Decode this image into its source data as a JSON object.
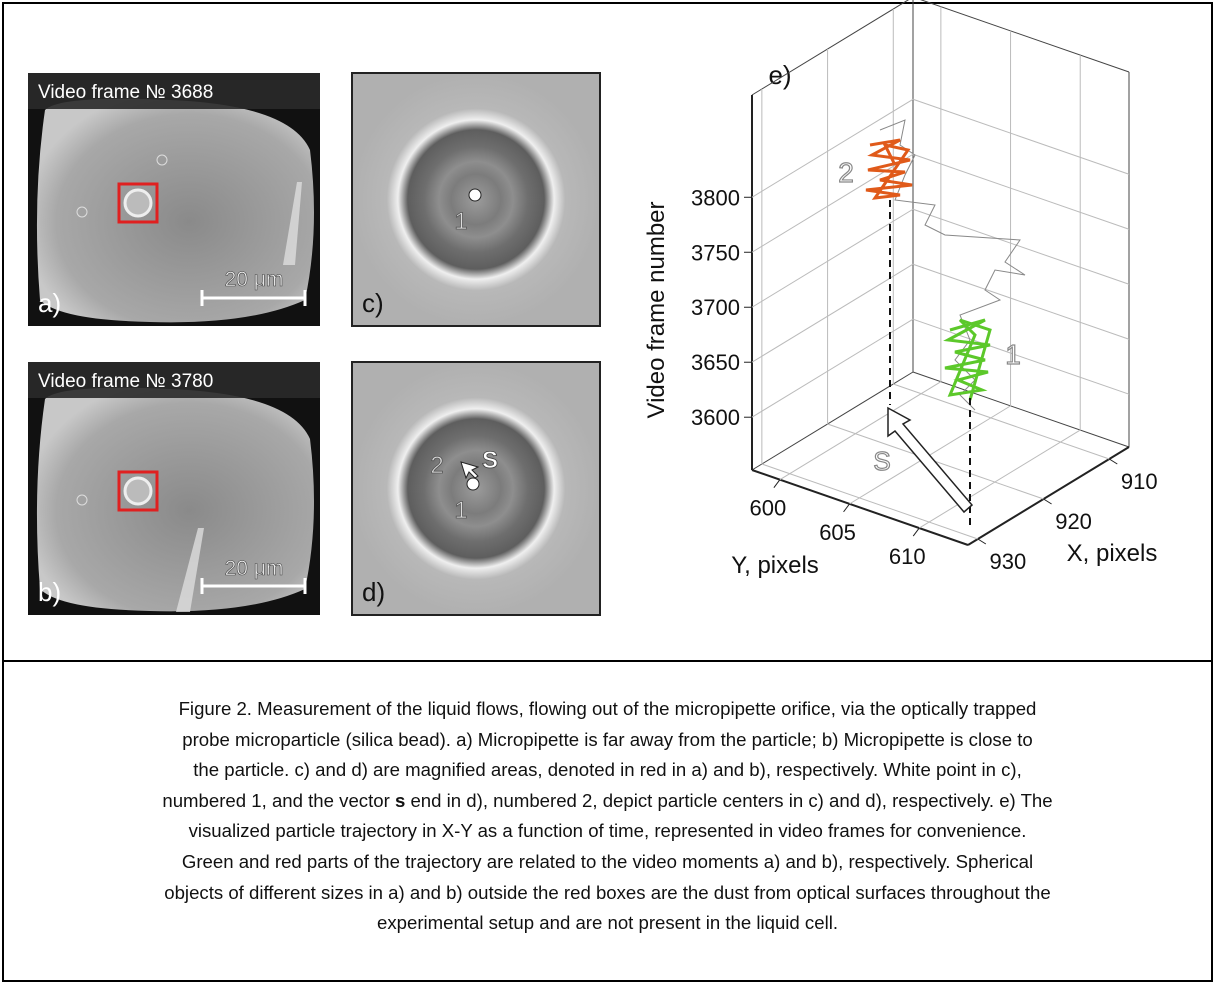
{
  "panels": {
    "a": {
      "header": "Video frame № 3688",
      "scale_bar": "20 μm",
      "label": "a)"
    },
    "b": {
      "header": "Video frame № 3780",
      "scale_bar": "20 μm",
      "label": "b)"
    },
    "c": {
      "label": "c)",
      "point_label": "1"
    },
    "d": {
      "label": "d)",
      "point_labels": [
        "2",
        "1"
      ],
      "vector_label": "S"
    },
    "e": {
      "label": "e)",
      "z_axis_label": "Video frame number",
      "zlim": [
        3552,
        3893
      ],
      "z_ticks": [
        3600,
        3650,
        3700,
        3750,
        3800
      ],
      "y_axis_label": "Y, pixels",
      "ylim": [
        598,
        613.5
      ],
      "y_ticks": [
        600,
        605,
        610
      ],
      "x_axis_label": "X, pixels",
      "xlim": [
        931.5,
        907
      ],
      "x_ticks": [
        910,
        920,
        930
      ],
      "trajectory_labels": [
        "2",
        "1"
      ],
      "vector_label": "S"
    }
  },
  "caption": {
    "lines": [
      [
        "Figure 2. Measurement of the liquid flows, flowing out of the micropipette orifice, via the optically trapped"
      ],
      [
        "probe microparticle (silica bead). a) Micropipette is far away from the particle; b) Micropipette is close to"
      ],
      [
        "the particle. c) and d) are magnified areas, denoted in red in a) and b), respectively. White point in c),"
      ],
      [
        "numbered 1, and the vector ",
        "s",
        " end in d), numbered 2, depict particle centers in c) and d), respectively. e) The"
      ],
      [
        "visualized particle trajectory in X-Y as a function of time, represented in video frames for convenience."
      ],
      [
        "Green and red parts of the trajectory are related to the video moments a) and b), respectively. Spherical"
      ],
      [
        "objects of different sizes in a) and b) outside the red boxes are the dust from optical surfaces throughout the"
      ],
      [
        "experimental setup and are not present in the liquid cell."
      ]
    ]
  }
}
